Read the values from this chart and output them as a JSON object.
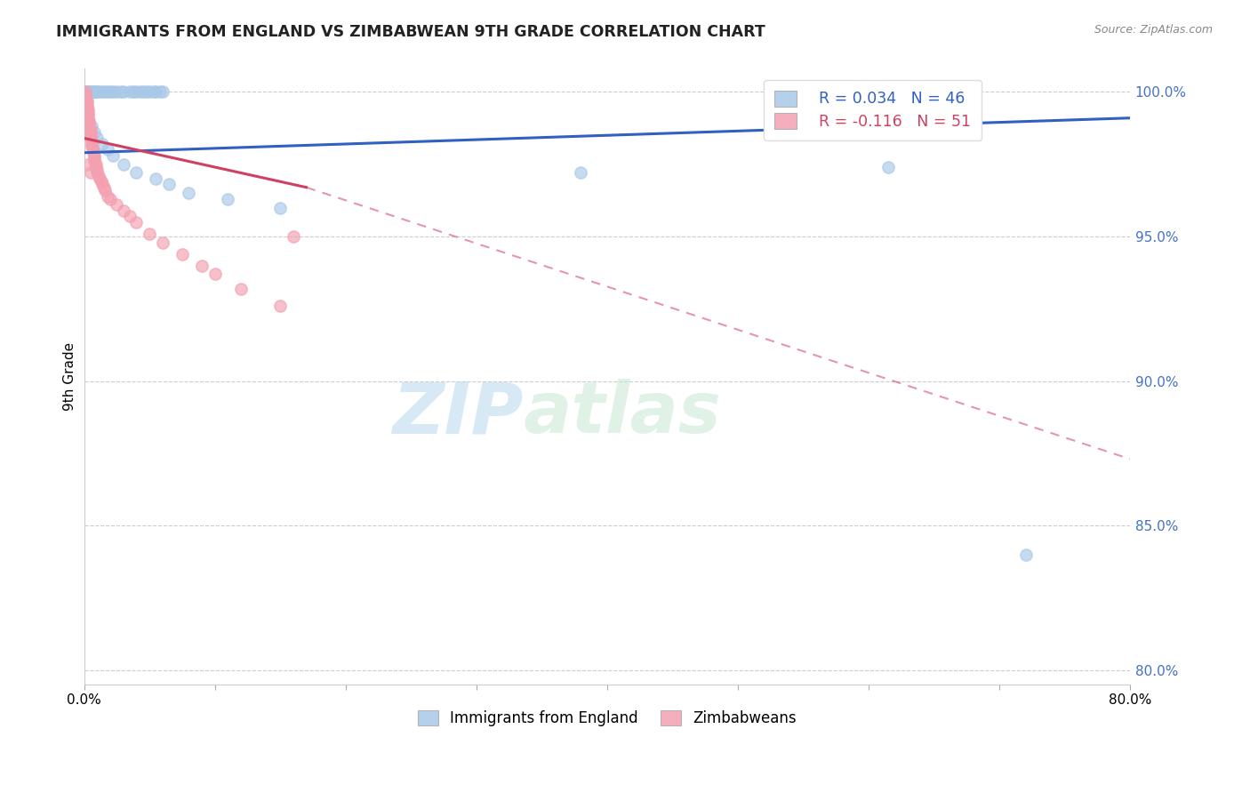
{
  "title": "IMMIGRANTS FROM ENGLAND VS ZIMBABWEAN 9TH GRADE CORRELATION CHART",
  "source": "Source: ZipAtlas.com",
  "ylabel": "9th Grade",
  "xmin": 0.0,
  "xmax": 0.8,
  "ymin": 0.795,
  "ymax": 1.008,
  "yticks": [
    0.8,
    0.85,
    0.9,
    0.95,
    1.0
  ],
  "ytick_labels": [
    "80.0%",
    "85.0%",
    "90.0%",
    "95.0%",
    "100.0%"
  ],
  "xticks": [
    0.0,
    0.1,
    0.2,
    0.3,
    0.4,
    0.5,
    0.6,
    0.7,
    0.8
  ],
  "xtick_labels": [
    "0.0%",
    "",
    "",
    "",
    "",
    "",
    "",
    "",
    "80.0%"
  ],
  "legend_r_blue": "R = 0.034",
  "legend_n_blue": "N = 46",
  "legend_r_pink": "R = -0.116",
  "legend_n_pink": "N = 51",
  "legend_label_blue": "Immigrants from England",
  "legend_label_pink": "Zimbabweans",
  "blue_color": "#a8c8e8",
  "pink_color": "#f4a0b0",
  "blue_line_color": "#3060c0",
  "pink_line_color": "#d04060",
  "watermark_zip": "ZIP",
  "watermark_atlas": "atlas",
  "blue_line_x0": 0.0,
  "blue_line_y0": 0.979,
  "blue_line_x1": 0.8,
  "blue_line_y1": 0.991,
  "pink_line_solid_x0": 0.0,
  "pink_line_solid_y0": 0.984,
  "pink_line_solid_x1": 0.17,
  "pink_line_solid_y1": 0.967,
  "pink_line_x0": 0.0,
  "pink_line_y0": 0.984,
  "pink_line_x1": 0.8,
  "pink_line_y1": 0.873,
  "blue_scatter_x": [
    0.001,
    0.002,
    0.003,
    0.004,
    0.005,
    0.006,
    0.007,
    0.008,
    0.009,
    0.01,
    0.012,
    0.014,
    0.016,
    0.018,
    0.02,
    0.022,
    0.025,
    0.028,
    0.03,
    0.035,
    0.038,
    0.04,
    0.043,
    0.045,
    0.048,
    0.05,
    0.053,
    0.055,
    0.058,
    0.06,
    0.006,
    0.008,
    0.01,
    0.014,
    0.018,
    0.022,
    0.03,
    0.04,
    0.055,
    0.065,
    0.08,
    0.11,
    0.38,
    0.72,
    0.615,
    0.15
  ],
  "blue_scatter_y": [
    1.0,
    1.0,
    1.0,
    1.0,
    1.0,
    1.0,
    1.0,
    1.0,
    1.0,
    1.0,
    1.0,
    1.0,
    1.0,
    1.0,
    1.0,
    1.0,
    1.0,
    1.0,
    1.0,
    1.0,
    1.0,
    1.0,
    1.0,
    1.0,
    1.0,
    1.0,
    1.0,
    1.0,
    1.0,
    1.0,
    0.988,
    0.986,
    0.984,
    0.982,
    0.98,
    0.978,
    0.975,
    0.972,
    0.97,
    0.968,
    0.965,
    0.963,
    0.972,
    0.84,
    0.974,
    0.96
  ],
  "pink_scatter_x": [
    0.001,
    0.001,
    0.001,
    0.002,
    0.002,
    0.002,
    0.003,
    0.003,
    0.003,
    0.003,
    0.004,
    0.004,
    0.004,
    0.005,
    0.005,
    0.005,
    0.005,
    0.006,
    0.006,
    0.006,
    0.007,
    0.007,
    0.008,
    0.008,
    0.008,
    0.009,
    0.009,
    0.01,
    0.01,
    0.011,
    0.012,
    0.013,
    0.014,
    0.015,
    0.016,
    0.018,
    0.02,
    0.025,
    0.03,
    0.035,
    0.04,
    0.05,
    0.06,
    0.075,
    0.09,
    0.1,
    0.12,
    0.15,
    0.003,
    0.005,
    0.16
  ],
  "pink_scatter_y": [
    1.0,
    0.999,
    0.998,
    0.997,
    0.996,
    0.995,
    0.994,
    0.993,
    0.992,
    0.991,
    0.99,
    0.989,
    0.988,
    0.987,
    0.986,
    0.985,
    0.984,
    0.983,
    0.982,
    0.981,
    0.98,
    0.979,
    0.978,
    0.977,
    0.976,
    0.975,
    0.974,
    0.973,
    0.972,
    0.971,
    0.97,
    0.969,
    0.968,
    0.967,
    0.966,
    0.964,
    0.963,
    0.961,
    0.959,
    0.957,
    0.955,
    0.951,
    0.948,
    0.944,
    0.94,
    0.937,
    0.932,
    0.926,
    0.975,
    0.972,
    0.95
  ]
}
